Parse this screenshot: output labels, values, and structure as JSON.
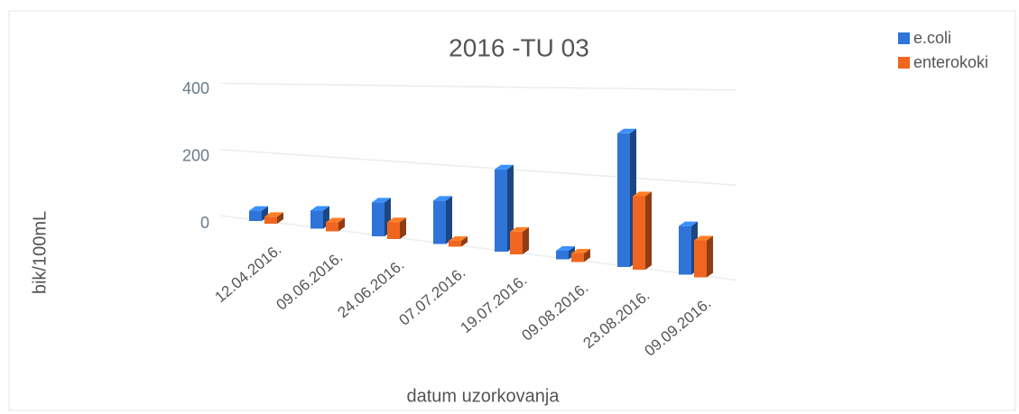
{
  "chart_data": {
    "type": "bar3d",
    "title": "2016 -TU 03",
    "x_label": "datum uzorkovanja",
    "y_label": "bik/100mL",
    "categories": [
      "12.04.2016.",
      "09.06.2016.",
      "24.06.2016.",
      "07.07.2016.",
      "19.07.2016.",
      "09.08.2016.",
      "23.08.2016.",
      "09.09.2016."
    ],
    "series": [
      {
        "name": "e.coli",
        "color": "#2f74d8",
        "values": [
          30,
          50,
          90,
          110,
          200,
          20,
          300,
          105
        ]
      },
      {
        "name": "enterokoki",
        "color": "#f0651f",
        "values": [
          20,
          25,
          45,
          15,
          55,
          20,
          165,
          80
        ]
      }
    ],
    "ylim": [
      0,
      400
    ],
    "yticks": [
      0,
      200,
      400
    ],
    "grid": true,
    "legend": "top-right"
  }
}
